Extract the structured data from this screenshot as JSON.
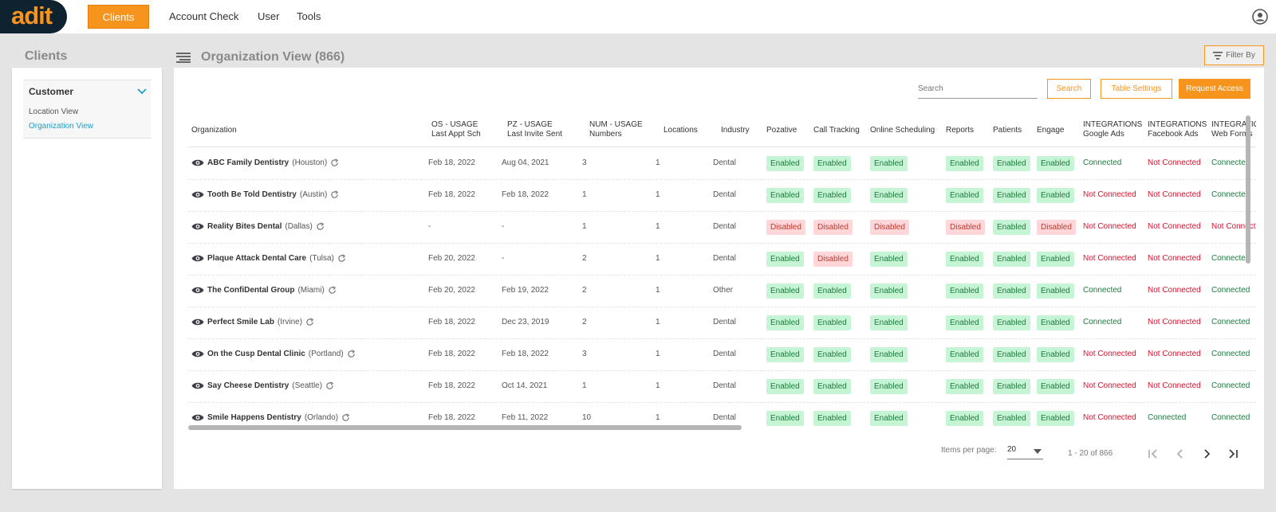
{
  "topbar": {
    "logo": "adit",
    "nav": {
      "clients": "Clients",
      "account_check": "Account Check",
      "user": "User",
      "tools": "Tools"
    }
  },
  "sidebar": {
    "title": "Clients",
    "section": "Customer",
    "items": [
      {
        "label": "Location View",
        "active": false
      },
      {
        "label": "Organization View",
        "active": true
      }
    ]
  },
  "main": {
    "title": "Organization View (866)",
    "filter_label": "Filter By",
    "search_placeholder": "Search",
    "search_button": "Search",
    "table_settings_button": "Table Settings",
    "request_access_button": "Request Access",
    "columns": [
      {
        "line1": "Organization",
        "line2": ""
      },
      {
        "line1": "OS - USAGE",
        "line2": "Last Appt Sch"
      },
      {
        "line1": "PZ - USAGE",
        "line2": "Last Invite Sent"
      },
      {
        "line1": "NUM - USAGE",
        "line2": "Numbers"
      },
      {
        "line1": "Locations",
        "line2": ""
      },
      {
        "line1": "Industry",
        "line2": ""
      },
      {
        "line1": "Pozative",
        "line2": ""
      },
      {
        "line1": "Call Tracking",
        "line2": ""
      },
      {
        "line1": "Online Scheduling",
        "line2": ""
      },
      {
        "line1": "Reports",
        "line2": ""
      },
      {
        "line1": "Patients",
        "line2": ""
      },
      {
        "line1": "Engage",
        "line2": ""
      },
      {
        "line1": "INTEGRATIONS",
        "line2": "Google Ads"
      },
      {
        "line1": "INTEGRATIONS",
        "line2": "Facebook Ads"
      },
      {
        "line1": "INTEGRATIONS",
        "line2": "Web Forms"
      }
    ],
    "rows": [
      {
        "name": "ABC Family Dentistry",
        "city": "(Houston)",
        "os": "Feb 18, 2022",
        "pz": "Aug 04, 2021",
        "num": "3",
        "loc": "1",
        "industry": "Dental",
        "pozative": "Enabled",
        "call": "Enabled",
        "online": "Enabled",
        "reports": "Enabled",
        "patients": "Enabled",
        "engage": "Enabled",
        "google": "Connected",
        "facebook": "Not Connected",
        "web": "Connected"
      },
      {
        "name": "Tooth Be Told Dentistry",
        "city": "(Austin)",
        "os": "Feb 18, 2022",
        "pz": "Feb 18, 2022",
        "num": "1",
        "loc": "1",
        "industry": "Dental",
        "pozative": "Enabled",
        "call": "Enabled",
        "online": "Enabled",
        "reports": "Enabled",
        "patients": "Enabled",
        "engage": "Enabled",
        "google": "Not Connected",
        "facebook": "Not Connected",
        "web": "Connected"
      },
      {
        "name": "Reality Bites Dental",
        "city": "(Dallas)",
        "os": "-",
        "pz": "-",
        "num": "1",
        "loc": "1",
        "industry": "Dental",
        "pozative": "Disabled",
        "call": "Disabled",
        "online": "Disabled",
        "reports": "Disabled",
        "patients": "Enabled",
        "engage": "Disabled",
        "google": "Not Connected",
        "facebook": "Not Connected",
        "web": "Not Connected"
      },
      {
        "name": "Plaque Attack Dental Care",
        "city": "(Tulsa)",
        "os": "Feb 20, 2022",
        "pz": "-",
        "num": "2",
        "loc": "1",
        "industry": "Dental",
        "pozative": "Enabled",
        "call": "Disabled",
        "online": "Enabled",
        "reports": "Enabled",
        "patients": "Enabled",
        "engage": "Enabled",
        "google": "Not Connected",
        "facebook": "Not Connected",
        "web": "Connected"
      },
      {
        "name": "The ConfiDental Group",
        "city": "(Miami)",
        "os": "Feb 20, 2022",
        "pz": "Feb 19, 2022",
        "num": "2",
        "loc": "1",
        "industry": "Other",
        "pozative": "Enabled",
        "call": "Enabled",
        "online": "Enabled",
        "reports": "Enabled",
        "patients": "Enabled",
        "engage": "Enabled",
        "google": "Connected",
        "facebook": "Not Connected",
        "web": "Connected"
      },
      {
        "name": "Perfect Smile Lab",
        "city": "(Irvine)",
        "os": "Feb 18, 2022",
        "pz": "Dec 23, 2019",
        "num": "2",
        "loc": "1",
        "industry": "Dental",
        "pozative": "Enabled",
        "call": "Enabled",
        "online": "Enabled",
        "reports": "Enabled",
        "patients": "Enabled",
        "engage": "Enabled",
        "google": "Connected",
        "facebook": "Not Connected",
        "web": "Connected"
      },
      {
        "name": "On the Cusp Dental Clinic",
        "city": "(Portland)",
        "os": "Feb 18, 2022",
        "pz": "Feb 18, 2022",
        "num": "3",
        "loc": "1",
        "industry": "Dental",
        "pozative": "Enabled",
        "call": "Enabled",
        "online": "Enabled",
        "reports": "Enabled",
        "patients": "Enabled",
        "engage": "Enabled",
        "google": "Not Connected",
        "facebook": "Not Connected",
        "web": "Connected"
      },
      {
        "name": "Say Cheese Dentistry",
        "city": "(Seattle)",
        "os": "Feb 18, 2022",
        "pz": "Oct 14, 2021",
        "num": "1",
        "loc": "1",
        "industry": "Dental",
        "pozative": "Enabled",
        "call": "Enabled",
        "online": "Enabled",
        "reports": "Enabled",
        "patients": "Enabled",
        "engage": "Enabled",
        "google": "Not Connected",
        "facebook": "Not Connected",
        "web": "Connected"
      },
      {
        "name": "Smile Happens Dentistry",
        "city": "(Orlando)",
        "os": "Feb 18, 2022",
        "pz": "Feb 11, 2022",
        "num": "10",
        "loc": "1",
        "industry": "Dental",
        "pozative": "Enabled",
        "call": "Enabled",
        "online": "Enabled",
        "reports": "Enabled",
        "patients": "Enabled",
        "engage": "Enabled",
        "google": "Not Connected",
        "facebook": "Connected",
        "web": "Connected"
      }
    ],
    "pagination": {
      "items_per_page_label": "Items per page:",
      "items_per_page": "20",
      "range": "1 - 20 of 866"
    }
  },
  "colors": {
    "accent": "#f7941d",
    "enabled_bg": "#c6f5d6",
    "enabled_text": "#1e7b3b",
    "disabled_bg": "#ffd6d9",
    "disabled_text": "#c0392b",
    "not_connected": "#e0102b",
    "link": "#1ea0c8"
  }
}
